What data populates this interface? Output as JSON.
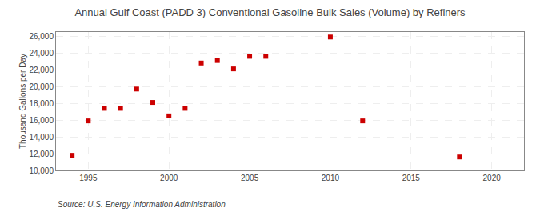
{
  "chart_data": {
    "type": "scatter",
    "title": "Annual Gulf Coast (PADD 3) Conventional Gasoline Bulk Sales (Volume) by Refiners",
    "ylabel": "Thousand Gallons per Day",
    "annotations": [
      "Source: U.S. Energy Information Administration"
    ],
    "x": [
      1994,
      1995,
      1996,
      1997,
      1998,
      1999,
      2000,
      2001,
      2002,
      2003,
      2004,
      2005,
      2006,
      2010,
      2012,
      2018
    ],
    "values": [
      11800,
      15900,
      17400,
      17400,
      19700,
      18100,
      16500,
      17400,
      22800,
      23100,
      22100,
      23600,
      23600,
      25900,
      15900,
      11600
    ],
    "color": "#cc0000",
    "marker": "square",
    "xlim": [
      1993,
      2022
    ],
    "ylim": [
      10000,
      26500
    ],
    "xticks": [
      1995,
      2000,
      2005,
      2010,
      2015,
      2020
    ],
    "yticks": [
      {
        "value": 10000,
        "label": "10,000"
      },
      {
        "value": 12000,
        "label": "12,000"
      },
      {
        "value": 14000,
        "label": "14,000"
      },
      {
        "value": 16000,
        "label": "16,000"
      },
      {
        "value": 18000,
        "label": "18,000"
      },
      {
        "value": 20000,
        "label": "20,000"
      },
      {
        "value": 22000,
        "label": "22,000"
      },
      {
        "value": 24000,
        "label": "24,000"
      },
      {
        "value": 26000,
        "label": "26,000"
      }
    ],
    "grid": true
  }
}
